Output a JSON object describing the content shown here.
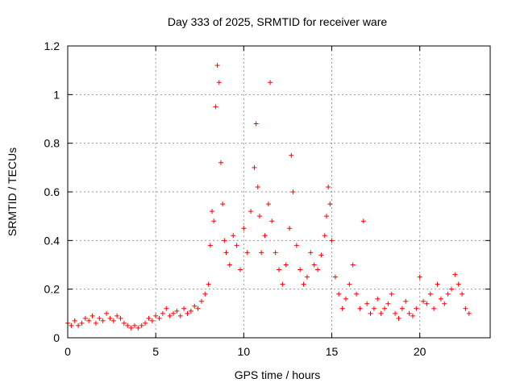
{
  "chart_data": {
    "type": "scatter",
    "title": "Day 333 of 2025, SRMTID for receiver ware",
    "xlabel": "GPS time / hours",
    "ylabel": "SRMTID / TECUs",
    "xlim": [
      0,
      24
    ],
    "ylim": [
      0,
      1.2
    ],
    "x_ticks": [
      0,
      5,
      10,
      15,
      20
    ],
    "x_tick_labels": [
      "0",
      "5",
      "10",
      "15",
      "20"
    ],
    "y_ticks": [
      0,
      0.2,
      0.4,
      0.6,
      0.8,
      1.0,
      1.2
    ],
    "y_tick_labels": [
      "0",
      "0.2",
      "0.4",
      "0.6",
      "0.8",
      "1",
      "1.2"
    ],
    "grid": true,
    "marker": "+",
    "marker_color": "#ff0000",
    "series": [
      {
        "name": "SRMTID",
        "x": [
          0.0,
          0.2,
          0.4,
          0.6,
          0.8,
          1.0,
          1.2,
          1.4,
          1.6,
          1.8,
          2.0,
          2.2,
          2.4,
          2.6,
          2.8,
          3.0,
          3.2,
          3.4,
          3.6,
          3.8,
          4.0,
          4.2,
          4.4,
          4.6,
          4.8,
          5.0,
          5.2,
          5.4,
          5.6,
          5.8,
          6.0,
          6.2,
          6.4,
          6.6,
          6.8,
          7.0,
          7.2,
          7.4,
          7.6,
          7.8,
          8.0,
          8.1,
          8.2,
          8.3,
          8.4,
          8.5,
          8.6,
          8.7,
          8.8,
          8.9,
          9.0,
          9.2,
          9.4,
          9.6,
          9.8,
          10.0,
          10.2,
          10.4,
          10.6,
          10.7,
          10.8,
          10.9,
          11.0,
          11.2,
          11.4,
          11.5,
          11.6,
          11.8,
          12.0,
          12.2,
          12.4,
          12.6,
          12.7,
          12.8,
          13.0,
          13.2,
          13.4,
          13.6,
          13.8,
          14.0,
          14.2,
          14.4,
          14.6,
          14.7,
          14.8,
          14.9,
          15.0,
          15.2,
          15.4,
          15.6,
          15.8,
          16.0,
          16.2,
          16.4,
          16.6,
          16.8,
          17.0,
          17.2,
          17.4,
          17.6,
          17.8,
          18.0,
          18.2,
          18.4,
          18.6,
          18.8,
          19.0,
          19.2,
          19.4,
          19.6,
          19.8,
          20.0,
          20.2,
          20.4,
          20.6,
          20.8,
          21.0,
          21.2,
          21.4,
          21.6,
          21.8,
          22.0,
          22.2,
          22.4,
          22.6,
          22.8
        ],
        "y": [
          0.06,
          0.05,
          0.07,
          0.05,
          0.06,
          0.08,
          0.07,
          0.09,
          0.06,
          0.08,
          0.07,
          0.1,
          0.08,
          0.07,
          0.09,
          0.08,
          0.06,
          0.05,
          0.04,
          0.05,
          0.04,
          0.05,
          0.06,
          0.08,
          0.07,
          0.09,
          0.08,
          0.1,
          0.12,
          0.09,
          0.1,
          0.11,
          0.09,
          0.12,
          0.1,
          0.11,
          0.13,
          0.12,
          0.15,
          0.18,
          0.22,
          0.38,
          0.52,
          0.48,
          0.95,
          1.12,
          1.05,
          0.72,
          0.55,
          0.4,
          0.35,
          0.3,
          0.42,
          0.38,
          0.28,
          0.45,
          0.35,
          0.52,
          0.7,
          0.88,
          0.62,
          0.5,
          0.35,
          0.42,
          0.55,
          1.05,
          0.48,
          0.35,
          0.28,
          0.22,
          0.3,
          0.45,
          0.75,
          0.6,
          0.38,
          0.28,
          0.22,
          0.25,
          0.35,
          0.3,
          0.28,
          0.34,
          0.42,
          0.5,
          0.62,
          0.55,
          0.4,
          0.25,
          0.18,
          0.12,
          0.16,
          0.22,
          0.3,
          0.18,
          0.12,
          0.48,
          0.14,
          0.1,
          0.12,
          0.16,
          0.1,
          0.12,
          0.14,
          0.18,
          0.1,
          0.08,
          0.12,
          0.15,
          0.1,
          0.09,
          0.12,
          0.25,
          0.15,
          0.14,
          0.18,
          0.12,
          0.22,
          0.16,
          0.14,
          0.18,
          0.2,
          0.26,
          0.22,
          0.18,
          0.12,
          0.1
        ]
      }
    ]
  }
}
